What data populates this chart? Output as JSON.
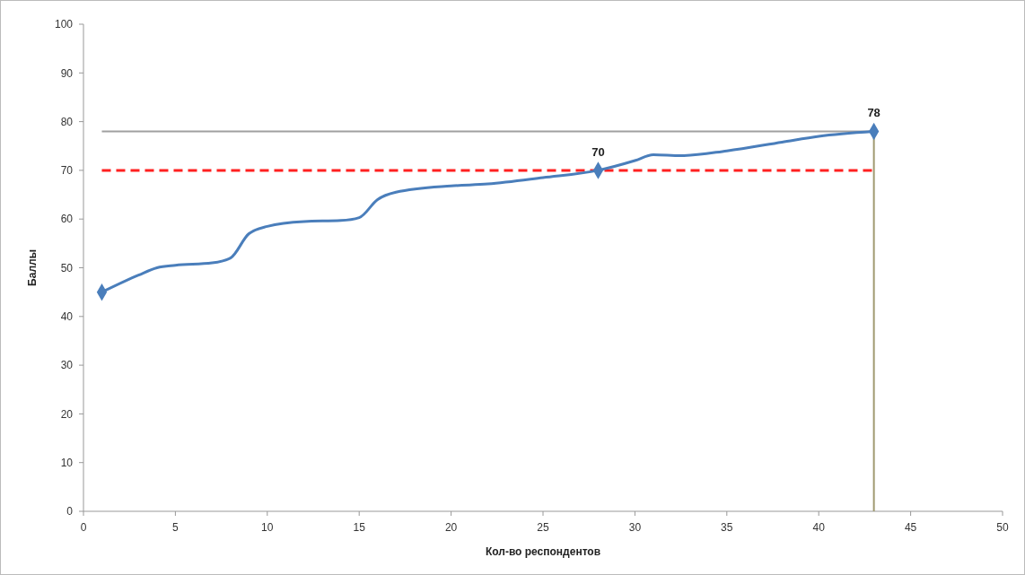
{
  "chart_data": {
    "type": "line",
    "xlabel": "Кол-во респондентов",
    "ylabel": "Баллы",
    "xlim": [
      0,
      50
    ],
    "xticks": [
      0,
      5,
      10,
      15,
      20,
      25,
      30,
      35,
      40,
      45,
      50
    ],
    "ylim": [
      0,
      100
    ],
    "yticks": [
      0,
      10,
      20,
      30,
      40,
      50,
      60,
      70,
      80,
      90,
      100
    ],
    "grid": false,
    "series": [
      {
        "color": "#4a7ebb",
        "marker": "none",
        "line_style": "solid",
        "x": [
          1,
          3,
          4,
          5,
          7,
          8,
          9,
          10,
          12,
          14,
          15,
          16,
          17,
          20,
          22,
          25,
          28,
          30,
          31,
          32.5,
          35,
          38,
          40,
          43
        ],
        "values": [
          45,
          48.5,
          50,
          50.5,
          51,
          52,
          57,
          58.5,
          59.5,
          59.7,
          60.3,
          64,
          65.5,
          66.8,
          67.2,
          68.5,
          70,
          72,
          73.2,
          73,
          74,
          75.8,
          77,
          78
        ]
      },
      {
        "type": "scatter",
        "color": "#4a7ebb",
        "marker": "diamond",
        "x": [
          1,
          28,
          43
        ],
        "values": [
          45,
          70,
          78
        ],
        "value_labels": [
          null,
          "70",
          "78"
        ]
      }
    ],
    "ref_lines": [
      {
        "axis": "y",
        "value": 78,
        "color": "#a0a0a0",
        "line_style": "solid"
      },
      {
        "axis": "y",
        "value": 70,
        "color": "#ff2020",
        "line_style": "dashed"
      },
      {
        "axis": "x",
        "value": 43,
        "color": "#a09a70",
        "line_style": "solid"
      }
    ]
  }
}
